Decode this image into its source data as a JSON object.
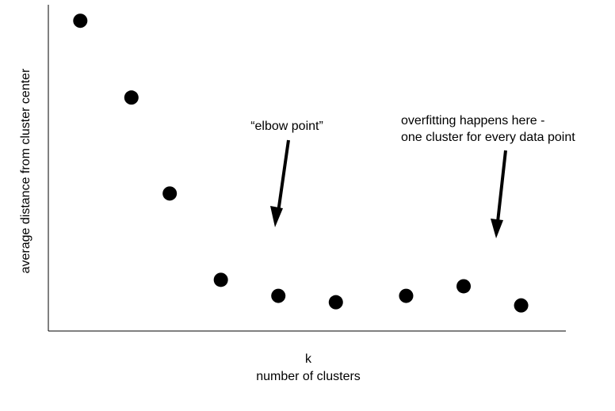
{
  "chart_data": {
    "type": "scatter",
    "xlabel_symbol": "k",
    "xlabel": "number of clusters",
    "ylabel": "average distance from cluster center",
    "grid": false,
    "legend": "none",
    "point_color": "#000000",
    "points": [
      {
        "x": 1.0,
        "y": 0.97
      },
      {
        "x": 1.8,
        "y": 0.73
      },
      {
        "x": 2.4,
        "y": 0.43
      },
      {
        "x": 3.2,
        "y": 0.16
      },
      {
        "x": 4.1,
        "y": 0.11
      },
      {
        "x": 5.0,
        "y": 0.09
      },
      {
        "x": 6.1,
        "y": 0.11
      },
      {
        "x": 7.0,
        "y": 0.14
      },
      {
        "x": 7.9,
        "y": 0.08
      }
    ],
    "xlim": [
      0.5,
      8.6
    ],
    "ylim": [
      0.0,
      1.02
    ],
    "annotations": [
      {
        "lines": [
          "“elbow point”"
        ],
        "arrow_to": {
          "x": 4.1,
          "y": 0.31
        }
      },
      {
        "lines": [
          "overfitting happens here -",
          "one cluster for every data point"
        ],
        "arrow_to": {
          "x": 7.4,
          "y": 0.28
        }
      }
    ]
  }
}
